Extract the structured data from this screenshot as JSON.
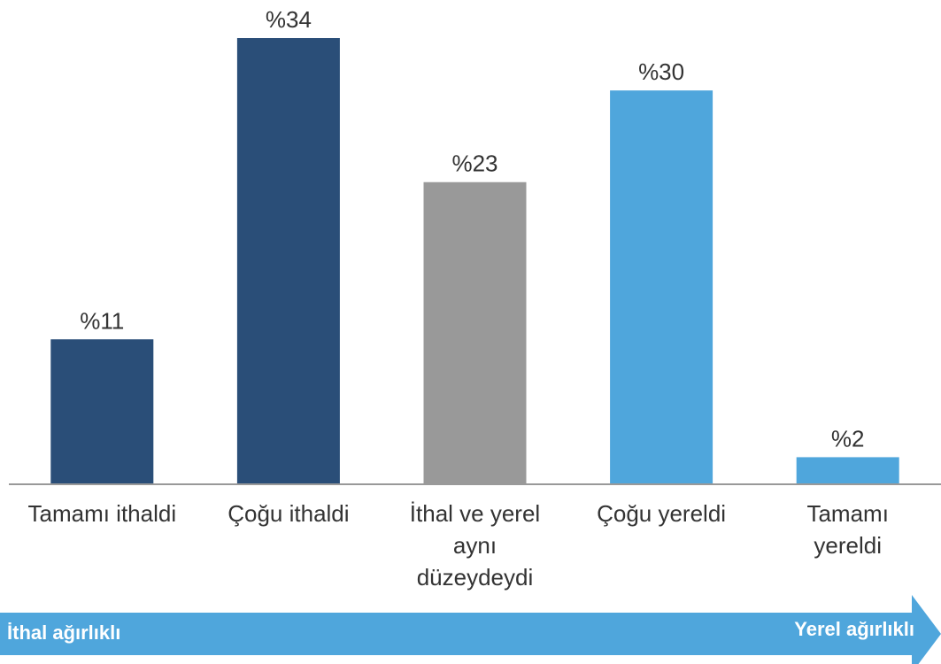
{
  "chart_data": {
    "type": "bar",
    "categories": [
      "Tamamı ithaldi",
      "Çoğu ithaldi",
      "İthal ve yerel aynı düzeydeydi",
      "Çoğu yereldi",
      "Tamamı yereldi"
    ],
    "values": [
      11,
      34,
      23,
      30,
      2
    ],
    "value_labels": [
      "%11",
      "%34",
      "%23",
      "%30",
      "%2"
    ],
    "colors": [
      "#2a4e78",
      "#2a4e78",
      "#999999",
      "#4fa6dc",
      "#4fa6dc"
    ],
    "annotations": {
      "left": "İthal ağırlıklı",
      "right": "Yerel ağırlıklı"
    }
  }
}
